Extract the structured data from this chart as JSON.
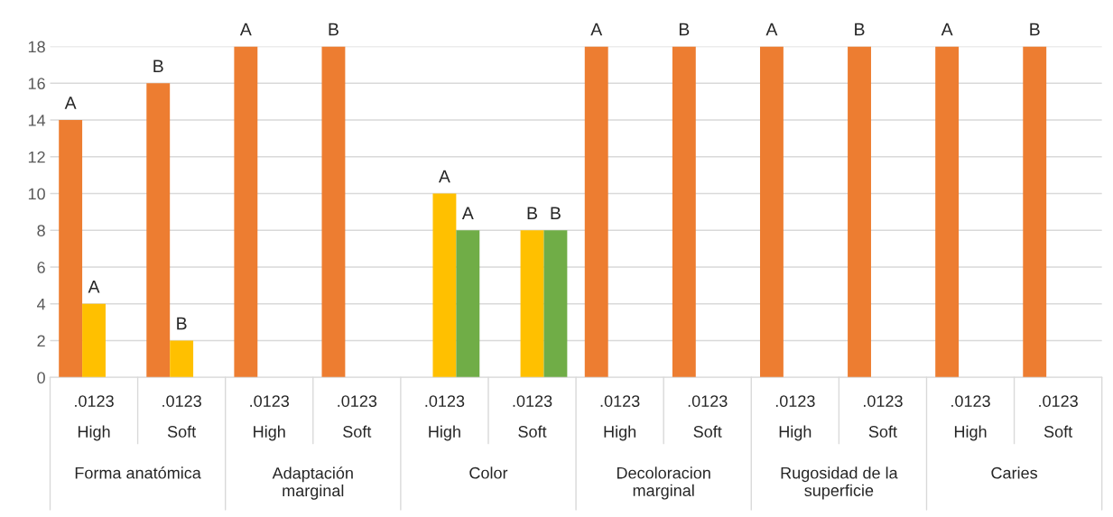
{
  "chart_data": {
    "type": "bar",
    "categories": [
      ".0123\nHigh",
      ".0123\nSoft",
      ".0123\nHigh",
      ".0123\nSoft",
      ".0123\nHigh",
      ".0123\nSoft",
      ".0123\nHigh",
      ".0123\nSoft",
      ".0123\nHigh",
      ".0123\nSoft",
      ".0123\nHigh",
      ".0123\nSoft"
    ],
    "series": [
      {
        "color": "#ed7d31",
        "values": [
          14,
          16,
          18,
          18,
          0,
          0,
          18,
          18,
          18,
          18,
          18,
          18
        ],
        "value_labels": [
          "A",
          "B",
          "A",
          "B",
          null,
          null,
          "A",
          "B",
          "A",
          "B",
          "A",
          "B"
        ]
      },
      {
        "color": "#ffc000",
        "values": [
          4,
          2,
          0,
          0,
          10,
          8,
          0,
          0,
          0,
          0,
          0,
          0
        ],
        "value_labels": [
          "A",
          "B",
          null,
          null,
          "A",
          "B",
          null,
          null,
          null,
          null,
          null,
          null
        ]
      },
      {
        "color": "#70ad47",
        "values": [
          0,
          0,
          0,
          0,
          8,
          8,
          0,
          0,
          0,
          0,
          0,
          0
        ],
        "value_labels": [
          null,
          null,
          null,
          null,
          "A",
          "B",
          null,
          null,
          null,
          null,
          null,
          null
        ]
      }
    ],
    "annotations": [
      "Forma anatómica",
      "Adaptación\nmarginal",
      "Color",
      "Decoloracion\nmarginal",
      "Rugosidad de la\nsuperficie",
      "Caries"
    ],
    "ylim": [
      0,
      18
    ],
    "yticks": [
      0,
      2,
      4,
      6,
      8,
      10,
      12,
      14,
      16,
      18
    ],
    "grid": "y",
    "legend": false
  }
}
